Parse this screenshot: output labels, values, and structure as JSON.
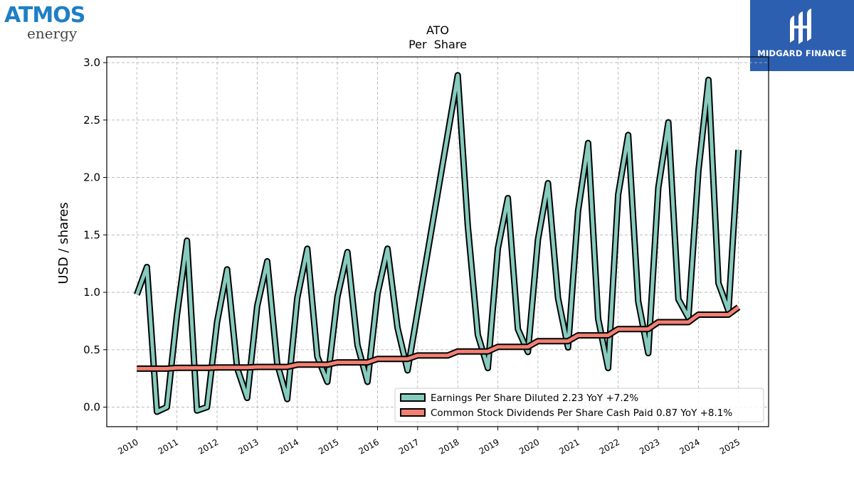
{
  "logos": {
    "left_main": "ATMOS",
    "left_sub": "energy",
    "right": "MIDGARD FINANCE"
  },
  "colors": {
    "eps": "#86cbbe",
    "dividends": "#f28072",
    "outline": "#000000",
    "grid": "#b0b0b0",
    "brand_blue": "#2d5fb0"
  },
  "chart_data": {
    "type": "line",
    "title": "ATO",
    "subtitle": "Per  Share",
    "xlabel": "",
    "ylabel": "USD / shares",
    "ylim": [
      -0.17,
      3.05
    ],
    "xlim": [
      2009.25,
      2025.75
    ],
    "yticks": [
      "0.0",
      "0.5",
      "1.0",
      "1.5",
      "2.0",
      "2.5",
      "3.0"
    ],
    "xticks": [
      "2010",
      "2011",
      "2012",
      "2013",
      "2014",
      "2015",
      "2016",
      "2017",
      "2018",
      "2019",
      "2020",
      "2021",
      "2022",
      "2023",
      "2024",
      "2025"
    ],
    "grid": true,
    "legend_position": "lower-right",
    "series": [
      {
        "name": "Earnings Per Share Diluted  2.23 YoY +7.2%",
        "x": [
          2010.0,
          2010.25,
          2010.5,
          2010.75,
          2011.0,
          2011.25,
          2011.5,
          2011.75,
          2012.0,
          2012.25,
          2012.5,
          2012.75,
          2013.0,
          2013.25,
          2013.5,
          2013.75,
          2014.0,
          2014.25,
          2014.5,
          2014.75,
          2015.0,
          2015.25,
          2015.5,
          2015.75,
          2016.0,
          2016.25,
          2016.5,
          2016.75,
          2018.0,
          2018.25,
          2018.5,
          2018.75,
          2019.0,
          2019.25,
          2019.5,
          2019.75,
          2020.0,
          2020.25,
          2020.5,
          2020.75,
          2021.0,
          2021.25,
          2021.5,
          2021.75,
          2022.0,
          2022.25,
          2022.5,
          2022.75,
          2023.0,
          2023.25,
          2023.5,
          2023.75,
          2024.0,
          2024.25,
          2024.5,
          2024.75,
          2025.0
        ],
        "y": [
          0.98,
          1.22,
          -0.04,
          0.0,
          0.8,
          1.45,
          -0.03,
          0.0,
          0.74,
          1.2,
          0.34,
          0.08,
          0.88,
          1.27,
          0.38,
          0.07,
          0.95,
          1.38,
          0.44,
          0.22,
          0.96,
          1.35,
          0.54,
          0.22,
          0.99,
          1.38,
          0.69,
          0.32,
          2.89,
          1.58,
          0.63,
          0.34,
          1.38,
          1.82,
          0.68,
          0.48,
          1.46,
          1.95,
          0.95,
          0.52,
          1.71,
          2.3,
          0.77,
          0.34,
          1.85,
          2.37,
          0.92,
          0.47,
          1.91,
          2.48,
          0.94,
          0.78,
          2.06,
          2.85,
          1.08,
          0.84,
          2.24
        ]
      },
      {
        "name": "Common Stock Dividends Per Share Cash Paid  0.87 YoY +8.1%",
        "x": [
          2010.0,
          2010.25,
          2010.5,
          2010.75,
          2011.0,
          2011.25,
          2011.5,
          2011.75,
          2012.0,
          2012.25,
          2012.5,
          2012.75,
          2013.0,
          2013.25,
          2013.5,
          2013.75,
          2014.0,
          2014.25,
          2014.5,
          2014.75,
          2015.0,
          2015.25,
          2015.5,
          2015.75,
          2016.0,
          2016.25,
          2016.5,
          2016.75,
          2017.0,
          2017.25,
          2017.5,
          2017.75,
          2018.0,
          2018.25,
          2018.5,
          2018.75,
          2019.0,
          2019.25,
          2019.5,
          2019.75,
          2020.0,
          2020.25,
          2020.5,
          2020.75,
          2021.0,
          2021.25,
          2021.5,
          2021.75,
          2022.0,
          2022.25,
          2022.5,
          2022.75,
          2023.0,
          2023.25,
          2023.5,
          2023.75,
          2024.0,
          2024.25,
          2024.5,
          2024.75,
          2025.0
        ],
        "y": [
          0.335,
          0.335,
          0.335,
          0.335,
          0.343,
          0.343,
          0.343,
          0.343,
          0.345,
          0.345,
          0.345,
          0.345,
          0.35,
          0.35,
          0.35,
          0.35,
          0.37,
          0.37,
          0.37,
          0.37,
          0.39,
          0.39,
          0.39,
          0.39,
          0.42,
          0.42,
          0.42,
          0.42,
          0.45,
          0.45,
          0.45,
          0.45,
          0.485,
          0.485,
          0.485,
          0.485,
          0.525,
          0.525,
          0.525,
          0.525,
          0.575,
          0.575,
          0.575,
          0.575,
          0.625,
          0.625,
          0.625,
          0.625,
          0.68,
          0.68,
          0.68,
          0.68,
          0.74,
          0.74,
          0.74,
          0.74,
          0.805,
          0.805,
          0.805,
          0.805,
          0.87
        ]
      }
    ]
  }
}
